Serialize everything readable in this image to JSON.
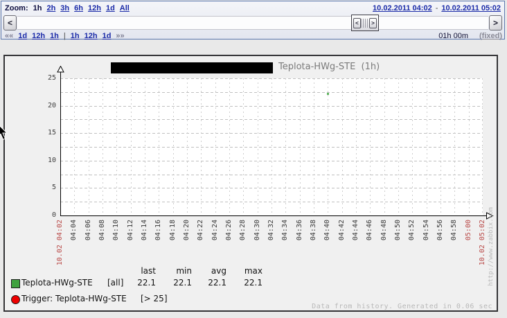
{
  "topbar": {
    "zoom_label": "Zoom:",
    "zoom_selected": "1h",
    "zoom_options": [
      "2h",
      "3h",
      "6h",
      "12h",
      "1d",
      "All"
    ],
    "date_from": "10.02.2011 04:02",
    "date_separator": "-",
    "date_to": "10.02.2011 05:02",
    "scroll_left_arrow": "<",
    "scroll_right_arrow": ">",
    "slider_left_arrow": "<",
    "slider_right_arrow": ">",
    "nav_back_symbol": "««",
    "nav_back_links": [
      "1d",
      "12h",
      "1h"
    ],
    "nav_separator": "|",
    "nav_fwd_links": [
      "1h",
      "12h",
      "1d"
    ],
    "nav_fwd_symbol": "»»",
    "period_label": "01h 00m",
    "fixed_label": "(fixed)"
  },
  "chart": {
    "title": "Teplota-HWg-STE  (1h)",
    "watermark": "http://www.zabbix.com",
    "footer": "Data from history. Generated in 0.06 sec"
  },
  "chart_data": {
    "type": "scatter",
    "title": "Teplota-HWg-STE (1h)",
    "xlabel": "",
    "ylabel": "",
    "ylim": [
      0,
      25
    ],
    "y_ticks": [
      0,
      5,
      10,
      15,
      20,
      25
    ],
    "y_grid_step": 2.5,
    "x_span_minutes": 60,
    "x_tick_step_minutes": 2,
    "grid": true,
    "x_ticks": [
      {
        "label": "10.02 04:02",
        "accent": true
      },
      {
        "label": "04:04"
      },
      {
        "label": "04:06"
      },
      {
        "label": "04:08"
      },
      {
        "label": "04:10"
      },
      {
        "label": "04:12"
      },
      {
        "label": "04:14"
      },
      {
        "label": "04:16"
      },
      {
        "label": "04:18"
      },
      {
        "label": "04:20"
      },
      {
        "label": "04:22"
      },
      {
        "label": "04:24"
      },
      {
        "label": "04:26"
      },
      {
        "label": "04:28"
      },
      {
        "label": "04:30"
      },
      {
        "label": "04:32"
      },
      {
        "label": "04:34"
      },
      {
        "label": "04:36"
      },
      {
        "label": "04:38"
      },
      {
        "label": "04:40"
      },
      {
        "label": "04:42"
      },
      {
        "label": "04:44"
      },
      {
        "label": "04:46"
      },
      {
        "label": "04:48"
      },
      {
        "label": "04:50"
      },
      {
        "label": "04:52"
      },
      {
        "label": "04:54"
      },
      {
        "label": "04:56"
      },
      {
        "label": "04:58"
      },
      {
        "label": "05:00",
        "accent": true
      },
      {
        "label": "10.02 05:02",
        "accent": true
      }
    ],
    "points": [
      {
        "time": "04:40",
        "minute_offset": 38,
        "value": 22.1
      }
    ],
    "legend": {
      "headers": [
        "last",
        "min",
        "avg",
        "max"
      ],
      "series": [
        {
          "name": "Teplota-HWg-STE",
          "scope": "[all]",
          "swatch": "green-square",
          "values": [
            "22.1",
            "22.1",
            "22.1",
            "22.1"
          ]
        }
      ],
      "trigger": {
        "name": "Trigger: Teplota-HWg-STE",
        "condition": "[> 25]",
        "swatch": "red-circle"
      }
    },
    "colors": {
      "series": "#3fa23f",
      "point": "#5fb65f",
      "trigger": "#ee0000",
      "accent_label": "#b94a48"
    }
  }
}
